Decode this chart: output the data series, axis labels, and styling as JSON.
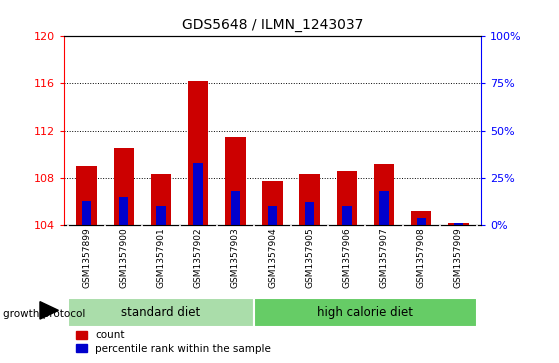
{
  "title": "GDS5648 / ILMN_1243037",
  "samples": [
    "GSM1357899",
    "GSM1357900",
    "GSM1357901",
    "GSM1357902",
    "GSM1357903",
    "GSM1357904",
    "GSM1357905",
    "GSM1357906",
    "GSM1357907",
    "GSM1357908",
    "GSM1357909"
  ],
  "count_values": [
    109.0,
    110.5,
    108.3,
    116.2,
    111.5,
    107.7,
    108.3,
    108.6,
    109.2,
    105.2,
    104.2
  ],
  "percentile_values": [
    13,
    15,
    10,
    33,
    18,
    10,
    12,
    10,
    18,
    4,
    1
  ],
  "ymin": 104,
  "ymax": 120,
  "y_ticks": [
    104,
    108,
    112,
    116,
    120
  ],
  "y2_ticks": [
    0,
    25,
    50,
    75,
    100
  ],
  "bar_color": "#cc0000",
  "pct_color": "#0000cc",
  "standard_diet_indices": [
    0,
    1,
    2,
    3,
    4
  ],
  "high_calorie_indices": [
    5,
    6,
    7,
    8,
    9,
    10
  ],
  "standard_diet_label": "standard diet",
  "high_calorie_label": "high calorie diet",
  "growth_protocol_label": "growth protocol",
  "legend_count": "count",
  "legend_pct": "percentile rank within the sample",
  "bar_color_hex": "#cc0000",
  "pct_color_hex": "#0000cc",
  "bg_xtick": "#cccccc",
  "bg_groupbar_std": "#aaddaa",
  "bg_groupbar_high": "#66cc66",
  "bar_width": 0.55,
  "pct_bar_width": 0.25
}
